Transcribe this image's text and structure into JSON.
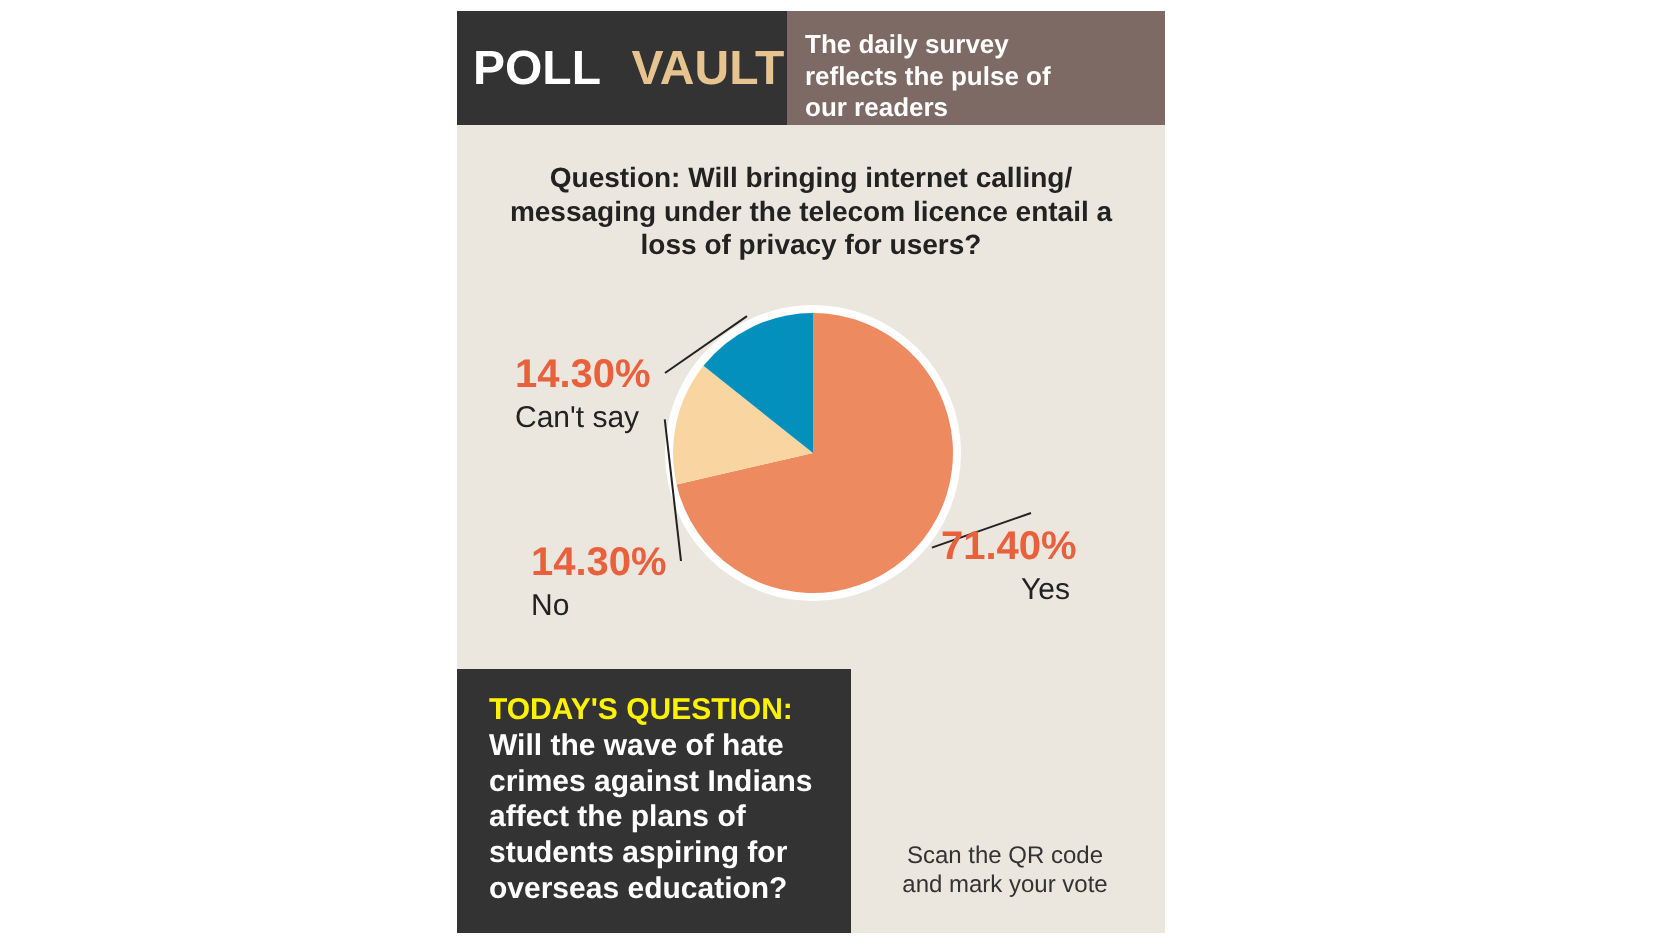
{
  "chart_data": {
    "type": "pie",
    "title": "POLL VAULT",
    "subtitle": "The daily survey reflects the pulse of our readers",
    "categories": [
      "Yes",
      "No",
      "Can't say"
    ],
    "values": [
      71.4,
      14.3,
      14.3
    ],
    "value_labels": [
      "71.40%",
      "14.30%",
      "14.30%"
    ],
    "colors": [
      "#ee8a60",
      "#f9d5a2",
      "#0390bd"
    ],
    "annotations": [
      "Question: Will bringing internet calling/ messaging under the telecom licence entail a loss of privacy for users?",
      "TODAY'S QUESTION:",
      "Will the wave of hate crimes against Indians affect the plans of students aspiring for overseas education?",
      "Scan the QR code and mark your vote"
    ]
  }
}
